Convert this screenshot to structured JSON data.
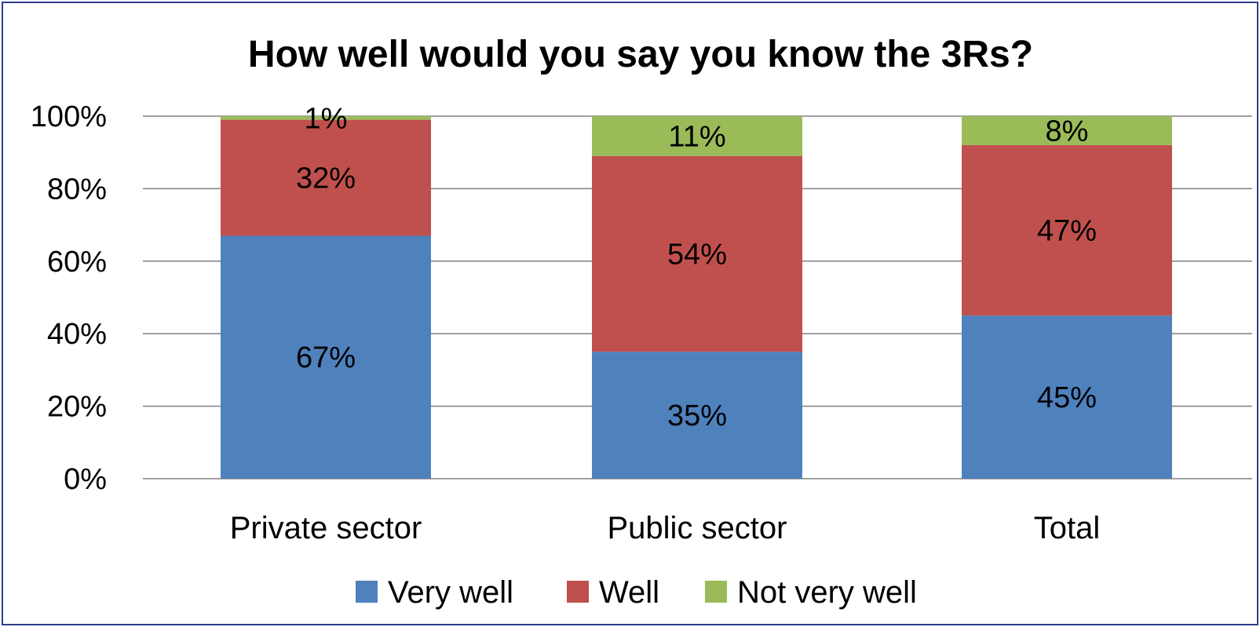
{
  "chart_data": {
    "type": "bar",
    "stacked": true,
    "title": "How well would you say you know the 3Rs?",
    "xlabel": "",
    "ylabel": "",
    "categories": [
      "Private sector",
      "Public sector",
      "Total"
    ],
    "series": [
      {
        "name": "Very well",
        "values": [
          0.67,
          0.35,
          0.45
        ],
        "labels": [
          "67%",
          "35%",
          "45%"
        ],
        "color": "#4F81BD"
      },
      {
        "name": "Well",
        "values": [
          0.32,
          0.54,
          0.47
        ],
        "labels": [
          "32%",
          "54%",
          "47%"
        ],
        "color": "#C0504D"
      },
      {
        "name": "Not very well",
        "values": [
          0.01,
          0.11,
          0.08
        ],
        "labels": [
          "1%",
          "11%",
          "8%"
        ],
        "color": "#9BBB59"
      }
    ],
    "ylim": [
      0,
      1
    ],
    "yticks": [
      0,
      0.2,
      0.4,
      0.6,
      0.8,
      1.0
    ],
    "ytick_labels": [
      "0%",
      "20%",
      "40%",
      "60%",
      "80%",
      "100%"
    ],
    "grid": true,
    "legend": "bottom",
    "gridline_color": "#808080",
    "border_color": "#2E3E8C"
  }
}
